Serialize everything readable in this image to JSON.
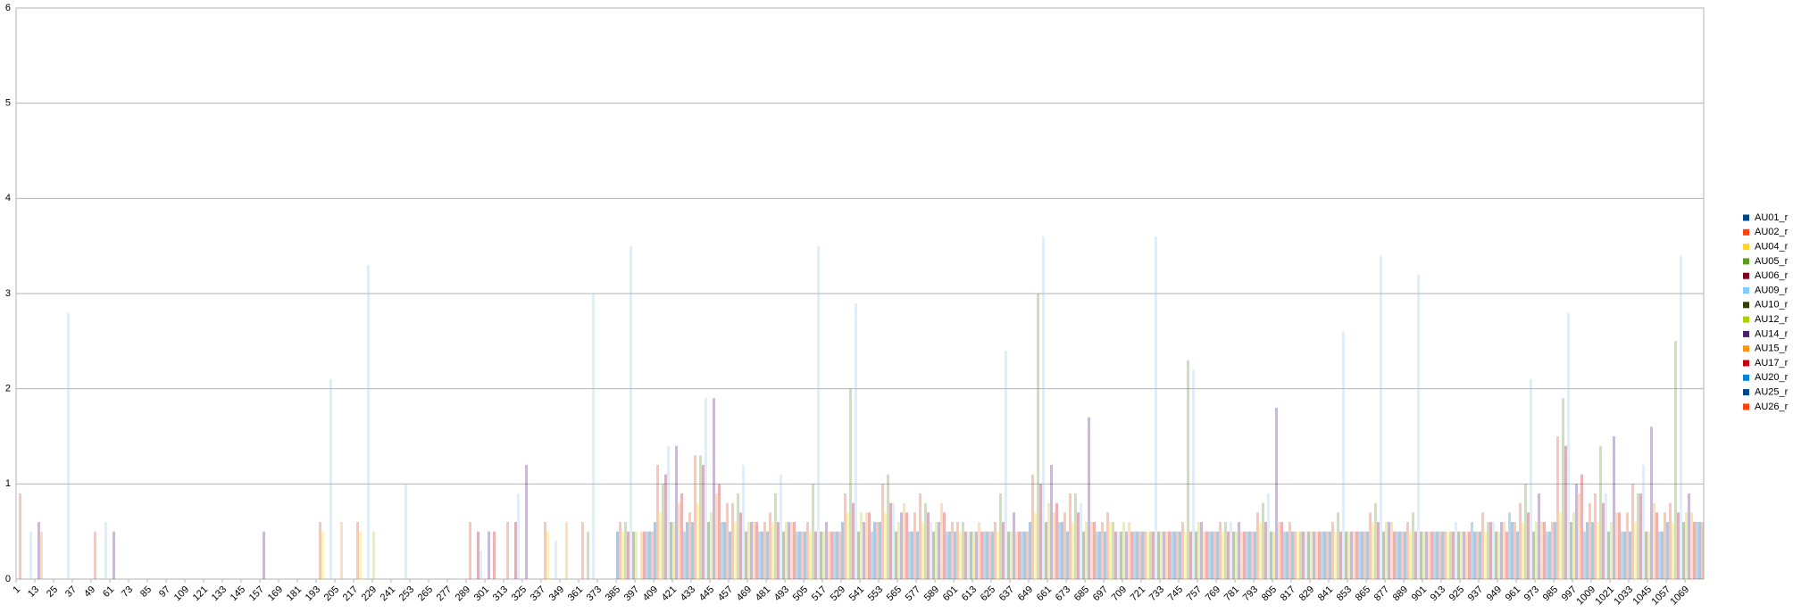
{
  "chart_data": {
    "type": "bar",
    "x": [
      1,
      25,
      49,
      73,
      97,
      121,
      145,
      169,
      193,
      217,
      241,
      265,
      289,
      313,
      337,
      361,
      385,
      409,
      433,
      457,
      481,
      505,
      529,
      553,
      577,
      601,
      625,
      649,
      673,
      697,
      721,
      745,
      769,
      793,
      817,
      841,
      865,
      889,
      913,
      937,
      961,
      985,
      1009,
      1033,
      1057
    ],
    "xlim": [
      1,
      1081
    ],
    "xticks": [
      1,
      13,
      25,
      37,
      49,
      61,
      73,
      85,
      97,
      109,
      121,
      133,
      145,
      157,
      169,
      181,
      193,
      205,
      217,
      229,
      241,
      253,
      265,
      277,
      289,
      301,
      313,
      325,
      337,
      349,
      361,
      373,
      385,
      397,
      409,
      421,
      433,
      445,
      457,
      469,
      481,
      493,
      505,
      517,
      529,
      541,
      553,
      565,
      577,
      589,
      601,
      613,
      625,
      637,
      649,
      661,
      673,
      685,
      697,
      709,
      721,
      733,
      745,
      757,
      769,
      781,
      793,
      805,
      817,
      829,
      841,
      853,
      865,
      877,
      889,
      901,
      913,
      925,
      937,
      949,
      961,
      973,
      985,
      997,
      1009,
      1021,
      1033,
      1045,
      1057,
      1069
    ],
    "ylim": [
      0,
      6
    ],
    "yticks": [
      0,
      1,
      2,
      3,
      4,
      5,
      6
    ],
    "grid": true,
    "legend": "right",
    "series": [
      {
        "name": "AU01_r",
        "color": "#004586",
        "values": [
          0,
          0,
          0,
          0,
          0,
          0,
          0,
          0,
          0,
          0,
          0,
          0,
          0,
          0,
          0,
          0,
          0.5,
          0.6,
          0.6,
          0.5,
          0.5,
          0.5,
          0.6,
          0.6,
          0.5,
          0.5,
          0.5,
          0.6,
          0.5,
          0.5,
          0.5,
          0.5,
          0.5,
          0.5,
          0.5,
          0.5,
          0.5,
          0.5,
          0.5,
          0.5,
          0.5,
          0.6,
          0.6,
          0.5,
          0.6
        ]
      },
      {
        "name": "AU02_r",
        "color": "#ff420e",
        "values": [
          0.9,
          0,
          0.5,
          0,
          0,
          0,
          0,
          0,
          0.6,
          0.6,
          0,
          0,
          0.6,
          0.6,
          0.6,
          0.6,
          0.6,
          1.2,
          1.3,
          0.8,
          0.7,
          0.6,
          0.9,
          1.0,
          0.9,
          0.6,
          0.6,
          1.1,
          0.9,
          0.7,
          0.5,
          0.6,
          0.6,
          0.7,
          0.5,
          0.6,
          0.7,
          0.6,
          0.5,
          0.7,
          0.8,
          1.5,
          0.9,
          1.0,
          0.8
        ]
      },
      {
        "name": "AU04_r",
        "color": "#ffd320",
        "values": [
          0,
          0,
          0,
          0,
          0,
          0,
          0,
          0,
          0.5,
          0.5,
          0,
          0,
          0,
          0,
          0.5,
          0,
          0.5,
          0.7,
          0.8,
          0.6,
          0.6,
          0.5,
          0.7,
          0.7,
          0.6,
          0.5,
          0.5,
          0.7,
          0.6,
          0.6,
          0.5,
          0.5,
          0.5,
          0.6,
          0.5,
          0.5,
          0.6,
          0.5,
          0.5,
          0.5,
          0.6,
          0.7,
          0.6,
          0.6,
          0.6
        ]
      },
      {
        "name": "AU05_r",
        "color": "#579d1c",
        "values": [
          0,
          0,
          0,
          0,
          0,
          0,
          0,
          0,
          0,
          0,
          0,
          0,
          0,
          0,
          0,
          0.5,
          0.6,
          1.0,
          1.3,
          0.9,
          0.9,
          1.0,
          2.0,
          1.1,
          0.8,
          0.6,
          0.9,
          3.0,
          0.9,
          0.6,
          0.5,
          2.3,
          0.6,
          0.8,
          0.5,
          0.7,
          0.8,
          0.7,
          0.5,
          0.6,
          1.0,
          1.9,
          1.4,
          0.9,
          2.5
        ]
      },
      {
        "name": "AU06_r",
        "color": "#7e0021",
        "values": [
          0,
          0,
          0,
          0,
          0,
          0,
          0,
          0,
          0,
          0,
          0,
          0,
          0.5,
          0.6,
          0,
          0,
          0.5,
          1.1,
          1.2,
          0.7,
          0.6,
          0.5,
          0.8,
          0.8,
          0.7,
          0.5,
          0.6,
          1.0,
          0.7,
          0.5,
          0.5,
          0.5,
          0.5,
          0.6,
          0.5,
          0.5,
          0.6,
          0.5,
          0.5,
          0.6,
          0.7,
          1.4,
          0.8,
          0.9,
          0.7
        ]
      },
      {
        "name": "AU09_r",
        "color": "#83caff",
        "values": [
          0.5,
          2.8,
          0.6,
          0,
          0,
          0,
          0,
          0,
          2.1,
          3.3,
          1.0,
          0,
          0.3,
          0.9,
          0.4,
          3.0,
          3.5,
          1.4,
          1.9,
          1.2,
          1.1,
          3.5,
          2.9,
          0.8,
          0.6,
          0.5,
          2.4,
          3.6,
          0.8,
          0.5,
          3.6,
          2.2,
          0.6,
          0.9,
          0.5,
          2.6,
          3.4,
          3.2,
          0.6,
          0.6,
          2.1,
          2.8,
          0.9,
          1.2,
          3.4
        ]
      },
      {
        "name": "AU10_r",
        "color": "#314004",
        "values": [
          0,
          0,
          0,
          0,
          0,
          0,
          0,
          0,
          0,
          0,
          0,
          0,
          0,
          0,
          0,
          0,
          0.5,
          0.6,
          0.6,
          0.5,
          0.5,
          0.5,
          0.5,
          0.5,
          0.5,
          0.5,
          0.5,
          0.6,
          0.5,
          0.5,
          0.5,
          0.5,
          0.5,
          0.5,
          0.5,
          0.5,
          0.5,
          0.5,
          0.5,
          0.5,
          0.5,
          0.6,
          0.5,
          0.5,
          0.6
        ]
      },
      {
        "name": "AU12_r",
        "color": "#aecf00",
        "values": [
          0,
          0,
          0,
          0,
          0,
          0,
          0,
          0,
          0,
          0.5,
          0,
          0,
          0,
          0,
          0,
          0,
          0.5,
          0.6,
          0.7,
          0.6,
          0.6,
          0.5,
          0.7,
          0.6,
          0.6,
          0.5,
          0.5,
          0.8,
          0.6,
          0.6,
          0.5,
          0.6,
          0.5,
          0.5,
          0.5,
          0.5,
          0.6,
          0.5,
          0.5,
          0.5,
          0.6,
          0.7,
          0.6,
          0.5,
          0.7
        ]
      },
      {
        "name": "AU14_r",
        "color": "#4b1f6f",
        "values": [
          0.6,
          0,
          0.5,
          0,
          0,
          0,
          0.5,
          0,
          0,
          0,
          0,
          0,
          0.5,
          1.2,
          0,
          0,
          0,
          1.4,
          1.9,
          0.6,
          0.6,
          0.6,
          0.6,
          0.7,
          0.6,
          0.5,
          0.7,
          1.2,
          1.7,
          0.5,
          0.5,
          0.6,
          0.6,
          1.8,
          0.5,
          0.5,
          0.6,
          0.5,
          0.5,
          0.6,
          0.9,
          1.0,
          1.5,
          1.6,
          0.9
        ]
      },
      {
        "name": "AU15_r",
        "color": "#ff950e",
        "values": [
          0.5,
          0,
          0,
          0,
          0,
          0,
          0,
          0,
          0.6,
          0,
          0,
          0,
          0,
          0,
          0.6,
          0,
          0.5,
          0.8,
          0.9,
          0.6,
          0.6,
          0.5,
          0.7,
          0.8,
          0.8,
          0.6,
          0.5,
          0.7,
          0.6,
          0.6,
          0.5,
          0.5,
          0.5,
          0.6,
          0.5,
          0.5,
          0.6,
          0.5,
          0.5,
          0.6,
          0.6,
          0.9,
          0.7,
          0.8,
          0.7
        ]
      },
      {
        "name": "AU17_r",
        "color": "#c5000b",
        "values": [
          0,
          0,
          0,
          0,
          0,
          0,
          0,
          0,
          0,
          0,
          0,
          0,
          0.5,
          0,
          0,
          0,
          0.5,
          0.9,
          1.0,
          0.6,
          0.6,
          0.5,
          0.7,
          0.7,
          0.7,
          0.5,
          0.5,
          0.8,
          0.6,
          0.5,
          0.5,
          0.5,
          0.5,
          0.6,
          0.5,
          0.5,
          0.5,
          0.5,
          0.5,
          0.5,
          0.6,
          1.1,
          0.7,
          0.7,
          0.6
        ]
      },
      {
        "name": "AU20_r",
        "color": "#0084d1",
        "values": [
          0,
          0,
          0,
          0,
          0,
          0,
          0,
          0,
          0,
          0,
          0,
          0,
          0,
          0,
          0,
          0,
          0.5,
          0.5,
          0.6,
          0.5,
          0.5,
          0.5,
          0.5,
          0.5,
          0.5,
          0.5,
          0.5,
          0.6,
          0.5,
          0.5,
          0.5,
          0.5,
          0.5,
          0.5,
          0.5,
          0.5,
          0.5,
          0.5,
          0.6,
          0.7,
          0.5,
          0.5,
          0.5,
          0.5,
          0.6
        ]
      },
      {
        "name": "AU25_r",
        "color": "#004586",
        "values": [
          0,
          0,
          0,
          0,
          0,
          0,
          0,
          0,
          0,
          0,
          0,
          0,
          0,
          0,
          0,
          0,
          0.5,
          0.6,
          0.6,
          0.5,
          0.5,
          0.5,
          0.6,
          0.5,
          0.5,
          0.5,
          0.5,
          0.6,
          0.5,
          0.5,
          0.5,
          0.5,
          0.5,
          0.5,
          0.5,
          0.5,
          0.5,
          0.5,
          0.5,
          0.6,
          0.5,
          0.6,
          0.5,
          0.5,
          0.6
        ]
      },
      {
        "name": "AU26_r",
        "color": "#ff420e",
        "values": [
          0,
          0,
          0,
          0,
          0,
          0,
          0,
          0,
          0,
          0,
          0,
          0,
          0,
          0,
          0,
          0,
          0.5,
          0.7,
          0.8,
          0.6,
          0.5,
          0.5,
          0.6,
          0.7,
          0.6,
          0.5,
          0.5,
          0.7,
          0.6,
          0.5,
          0.5,
          0.5,
          0.5,
          0.6,
          0.5,
          0.5,
          0.5,
          0.5,
          0.5,
          0.6,
          0.6,
          0.8,
          0.7,
          0.7,
          0.6
        ]
      }
    ]
  }
}
